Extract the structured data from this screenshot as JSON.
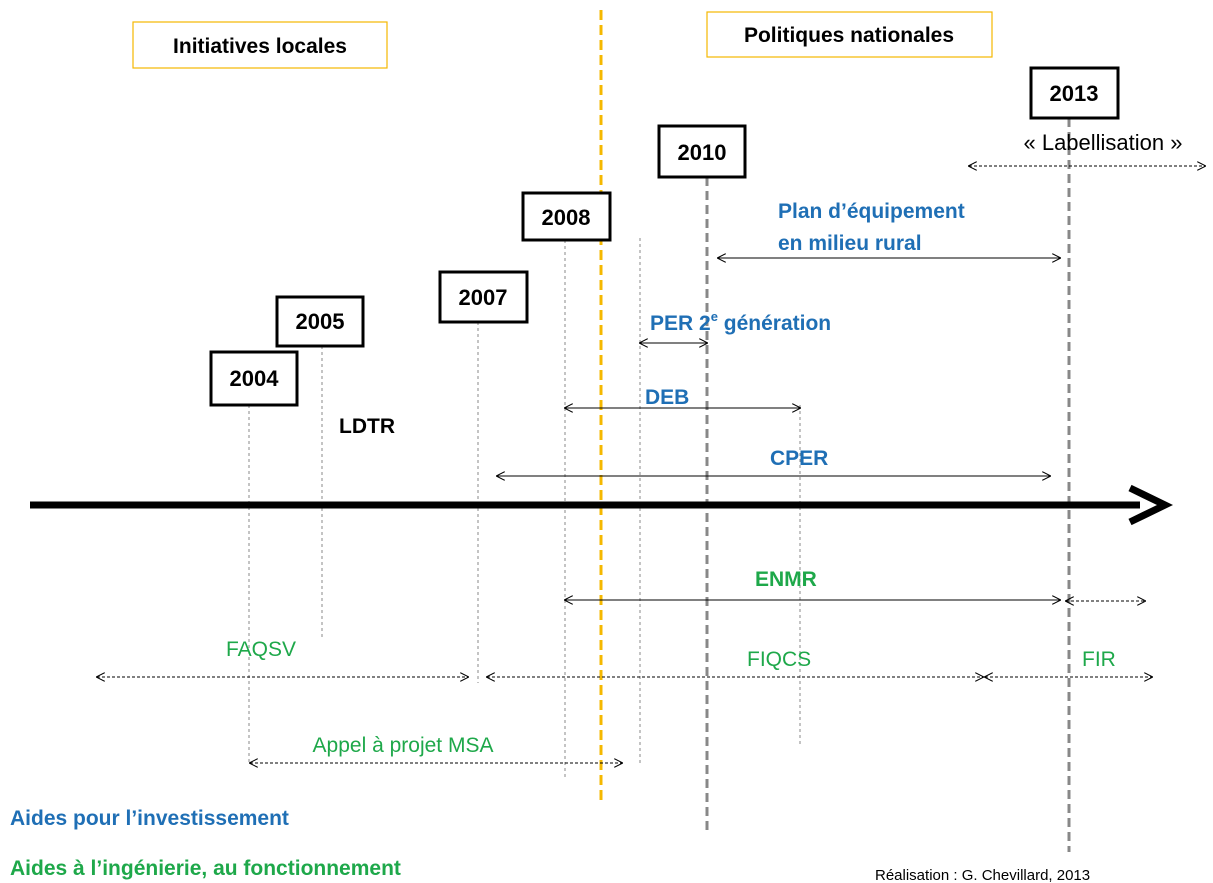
{
  "headers": {
    "local": "Initiatives locales",
    "national": "Politiques nationales"
  },
  "years": [
    "2004",
    "2005",
    "2007",
    "2008",
    "2010",
    "2013"
  ],
  "labels": {
    "labellisation": "« Labellisation »",
    "plan_line1": "Plan d’équipement",
    "plan_line2": "en milieu rural",
    "per_prefix": "PER 2",
    "per_sup": "e",
    "per_suffix": " génération",
    "deb": "DEB",
    "ldtr": "LDTR",
    "cper": "CPER",
    "enmr": "ENMR",
    "faqsv": "FAQSV",
    "fiqcs": "FIQCS",
    "fir": "FIR",
    "msa": "Appel à projet MSA"
  },
  "legend": {
    "investment": "Aides pour l’investissement",
    "engineering": "Aides à l’ingénierie, au fonctionnement"
  },
  "credit": "Réalisation : G. Chevillard, 2013"
}
